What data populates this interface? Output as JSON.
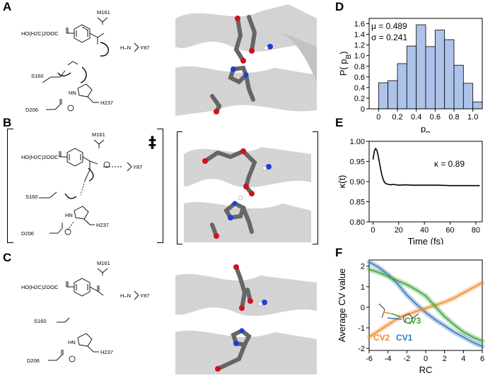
{
  "panels": {
    "A": "A",
    "B": "B",
    "C": "C",
    "D": "D",
    "E": "E",
    "F": "F"
  },
  "ts_marker": "‡",
  "chem": {
    "a": {
      "tpa": "HO(H2C)2OOC",
      "m161": "M161",
      "s160": "S160",
      "y87": "Y87",
      "h237": "H237",
      "d206": "D206",
      "nh": "H–N",
      "hn": "HN"
    },
    "b": {
      "tpa": "HO(H2C)2OOC",
      "m161": "M161",
      "s160": "S160",
      "y87": "Y87",
      "h237": "H237",
      "d206": "D206",
      "hn": "HN"
    },
    "c": {
      "tpa": "HO(H2C)2OOC",
      "m161": "M161",
      "s160": "S160",
      "y87": "Y87",
      "h237": "H237",
      "d206": "D206",
      "hn": "HN",
      "nh": "H–N"
    }
  },
  "structure_colors": {
    "carbon": "#6e6e6e",
    "oxygen": "#d0111b",
    "nitrogen": "#1f3fd6",
    "hydrogen": "#ffffff",
    "protein": "#c8c8c8"
  },
  "chart_data": [
    {
      "panel": "D",
      "type": "bar",
      "xlabel": "pB",
      "ylabel": "P(pB)",
      "bin_edges": [
        -0.1,
        0.0,
        0.1,
        0.2,
        0.3,
        0.4,
        0.5,
        0.6,
        0.7,
        0.8,
        0.9,
        1.0,
        1.1
      ],
      "values": [
        0.0,
        0.49,
        0.53,
        0.85,
        1.18,
        1.58,
        1.17,
        1.48,
        1.3,
        0.82,
        0.48,
        0.13
      ],
      "xlim": [
        -0.1,
        1.1
      ],
      "ylim": [
        0,
        1.7
      ],
      "xticks": [
        "0",
        "0.2",
        "0.4",
        "0.6",
        "0.8",
        "1.0"
      ],
      "yticks": [
        "0",
        "0.2",
        "0.4",
        "0.6",
        "0.8",
        "1.0",
        "1.2",
        "1.4",
        "1.6"
      ],
      "annotations": [
        "μ = 0.489",
        "σ = 0.241"
      ],
      "bar_color": "#aec3ea"
    },
    {
      "panel": "E",
      "type": "line",
      "xlabel": "Time (fs)",
      "ylabel": "κ(t)",
      "x": [
        0,
        1,
        2,
        3,
        4,
        5,
        6,
        7,
        8,
        9,
        10,
        12,
        14,
        16,
        18,
        20,
        25,
        30,
        40,
        50,
        60,
        70,
        80,
        83
      ],
      "y": [
        0.955,
        0.975,
        0.982,
        0.978,
        0.965,
        0.948,
        0.93,
        0.915,
        0.905,
        0.898,
        0.895,
        0.893,
        0.892,
        0.893,
        0.892,
        0.891,
        0.892,
        0.891,
        0.891,
        0.891,
        0.89,
        0.89,
        0.89,
        0.89
      ],
      "xlim": [
        -3,
        85
      ],
      "ylim": [
        0.8,
        1.0
      ],
      "xticks": [
        "0",
        "20",
        "40",
        "60",
        "80"
      ],
      "yticks": [
        "0.80",
        "0.85",
        "0.90",
        "0.95",
        "1.00"
      ],
      "annotation": "κ = 0.89"
    },
    {
      "panel": "F",
      "type": "line",
      "xlabel": "RC",
      "ylabel": "Average CV value",
      "xlim": [
        -6,
        6
      ],
      "ylim": [
        -2.1,
        2.3
      ],
      "xticks": [
        "-6",
        "-4",
        "-2",
        "0",
        "2",
        "4",
        "6"
      ],
      "yticks": [
        "-2",
        "-1",
        "0",
        "1",
        "2"
      ],
      "series": [
        {
          "name": "CV1",
          "color": "#3a78c2",
          "x": [
            -6,
            -5,
            -4,
            -3,
            -2,
            -1,
            0,
            1,
            2,
            3,
            4,
            5,
            6
          ],
          "y": [
            2.2,
            1.95,
            1.6,
            1.15,
            0.6,
            0.15,
            -0.25,
            -0.6,
            -0.9,
            -1.2,
            -1.45,
            -1.7,
            -1.9
          ]
        },
        {
          "name": "CV2",
          "color": "#f08a26",
          "x": [
            -6,
            -5,
            -4,
            -3,
            -2,
            -1,
            0,
            1,
            2,
            3,
            4,
            5,
            6
          ],
          "y": [
            -1.45,
            -1.15,
            -0.85,
            -0.55,
            -0.35,
            -0.2,
            -0.05,
            0.1,
            0.25,
            0.45,
            0.7,
            0.95,
            1.2
          ]
        },
        {
          "name": "CV3",
          "color": "#3aa53a",
          "x": [
            -6,
            -5,
            -4,
            -3,
            -2,
            -1,
            0,
            1,
            2,
            3,
            4,
            5,
            6
          ],
          "y": [
            1.85,
            1.7,
            1.5,
            1.3,
            1.1,
            0.85,
            0.55,
            0.05,
            -0.45,
            -0.85,
            -1.2,
            -1.45,
            -1.65
          ]
        }
      ]
    }
  ]
}
